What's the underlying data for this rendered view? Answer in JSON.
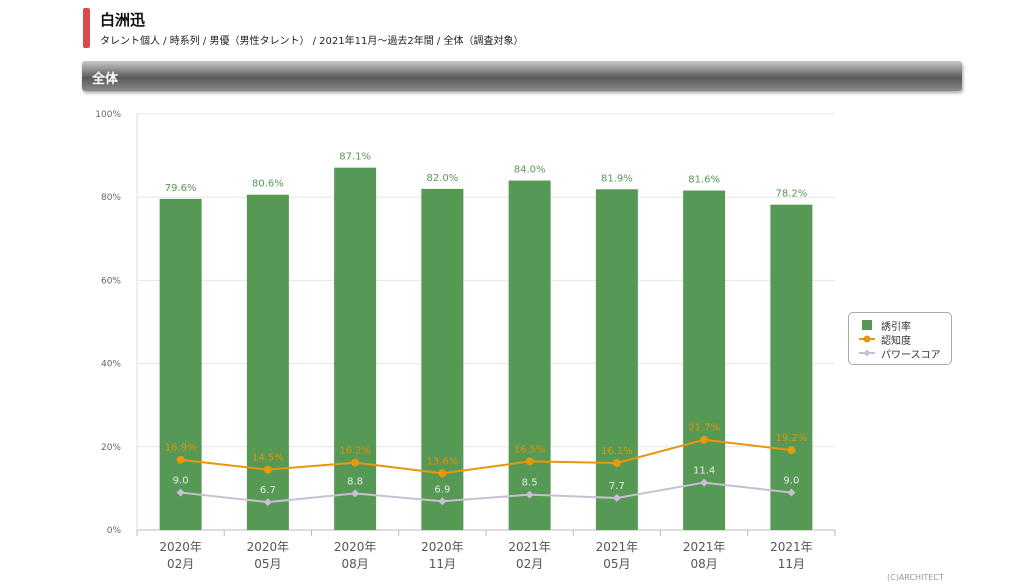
{
  "header": {
    "title": "白洲迅",
    "subtitle": "タレント個人 / 時系列 / 男優（男性タレント） / 2021年11月〜過去2年間 / 全体（調査対象）",
    "section": "全体"
  },
  "footer": {
    "copyright": "(C)ARCHITECT"
  },
  "colors": {
    "bar": "#559955",
    "awareness": "#e8960c",
    "power": "#c9bfd4"
  },
  "chart_data": {
    "type": "bar",
    "categories": [
      [
        "2020年",
        "02月"
      ],
      [
        "2020年",
        "05月"
      ],
      [
        "2020年",
        "08月"
      ],
      [
        "2020年",
        "11月"
      ],
      [
        "2021年",
        "02月"
      ],
      [
        "2021年",
        "05月"
      ],
      [
        "2021年",
        "08月"
      ],
      [
        "2021年",
        "11月"
      ]
    ],
    "yticks": [
      "0%",
      "20%",
      "40%",
      "60%",
      "80%",
      "100%"
    ],
    "ylim": [
      0,
      100
    ],
    "series": [
      {
        "name": "誘引率",
        "type": "bar",
        "values": [
          79.6,
          80.6,
          87.1,
          82.0,
          84.0,
          81.9,
          81.6,
          78.2
        ],
        "labels": [
          "79.6%",
          "80.6%",
          "87.1%",
          "82.0%",
          "84.0%",
          "81.9%",
          "81.6%",
          "78.2%"
        ]
      },
      {
        "name": "認知度",
        "type": "line",
        "values": [
          16.9,
          14.5,
          16.2,
          13.6,
          16.5,
          16.1,
          21.7,
          19.2
        ],
        "labels": [
          "16.9%",
          "14.5%",
          "16.2%",
          "13.6%",
          "16.5%",
          "16.1%",
          "21.7%",
          "19.2%"
        ]
      },
      {
        "name": "パワースコア",
        "type": "line",
        "values": [
          9.0,
          6.7,
          8.8,
          6.9,
          8.5,
          7.7,
          11.4,
          9.0
        ],
        "labels": [
          "9.0",
          "6.7",
          "8.8",
          "6.9",
          "8.5",
          "7.7",
          "11.4",
          "9.0"
        ]
      }
    ],
    "legend": "right"
  }
}
